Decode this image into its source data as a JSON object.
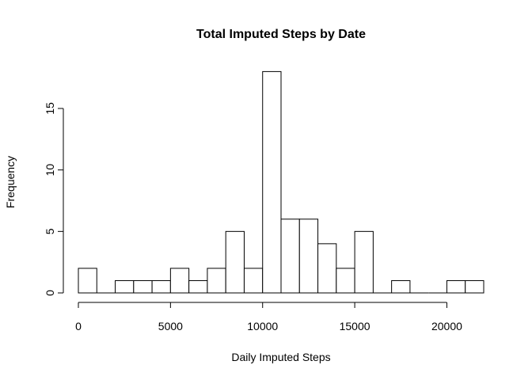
{
  "chart_data": {
    "type": "bar",
    "title": "Total Imputed Steps by Date",
    "xlabel": "Daily Imputed Steps",
    "ylabel": "Frequency",
    "bin_width": 1000,
    "bin_start": 0,
    "values": [
      2,
      0,
      1,
      1,
      1,
      2,
      1,
      2,
      5,
      2,
      18,
      6,
      6,
      4,
      2,
      5,
      0,
      1,
      0,
      0,
      1,
      1
    ],
    "xlim": [
      0,
      22000
    ],
    "ylim": [
      0,
      18
    ],
    "x_ticks": [
      0,
      5000,
      10000,
      15000,
      20000
    ],
    "x_tick_labels": [
      "0",
      "5000",
      "10000",
      "15000",
      "20000"
    ],
    "y_ticks": [
      0,
      5,
      10,
      15
    ],
    "y_tick_labels": [
      "0",
      "5",
      "10",
      "15"
    ],
    "bar_fill": "#ffffff",
    "bar_stroke": "#000000",
    "grid": false,
    "legend": "none"
  }
}
